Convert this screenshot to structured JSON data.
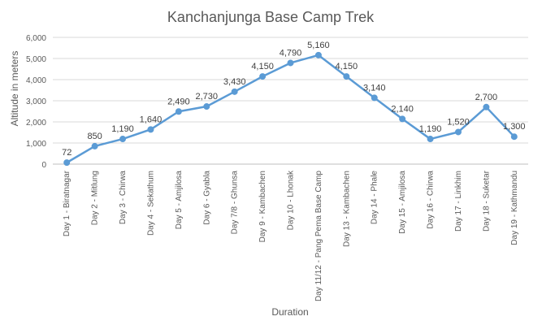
{
  "chart_data": {
    "type": "line",
    "title": "Kanchanjunga Base Camp Trek",
    "xlabel": "Duration",
    "ylabel": "Altitude in meters",
    "ylim": [
      0,
      6000
    ],
    "y_ticks": [
      "0",
      "1,000",
      "2,000",
      "3,000",
      "4,000",
      "5,000",
      "6,000"
    ],
    "y_tick_values": [
      0,
      1000,
      2000,
      3000,
      4000,
      5000,
      6000
    ],
    "grid": true,
    "legend": "none",
    "color": "#5b9bd5",
    "categories": [
      "Day 1 - Biratnagar",
      "Day 2 - Mitlung",
      "Day 3 - Chirwa",
      "Day 4 - Sekathum",
      "Day 5 - Amjilosa",
      "Day 6 - Gyabla",
      "Day 7/8 - Ghunsa",
      "Day 9 - Kambachen",
      "Day 10 - Lhonak",
      "Day 11/12 - Pang Pema Base Camp",
      "Day 13 - Kambachen",
      "Day 14 - Phale",
      "Day 15 - Amjilosa",
      "Day 16 - Chirwa",
      "Day 17 - Linkhim",
      "Day 18 - Suketar",
      "Day 19 - Kathmandu"
    ],
    "values": [
      72,
      850,
      1190,
      1640,
      2490,
      2730,
      3430,
      4150,
      4790,
      5160,
      4150,
      3140,
      2140,
      1190,
      1520,
      2700,
      1300
    ],
    "data_labels": [
      "72",
      "850",
      "1,190",
      "1,640",
      "2,490",
      "2,730",
      "3,430",
      "4,150",
      "4,790",
      "5,160",
      "4,150",
      "3,140",
      "2,140",
      "1,190",
      "1,520",
      "2,700",
      "1,300"
    ]
  }
}
